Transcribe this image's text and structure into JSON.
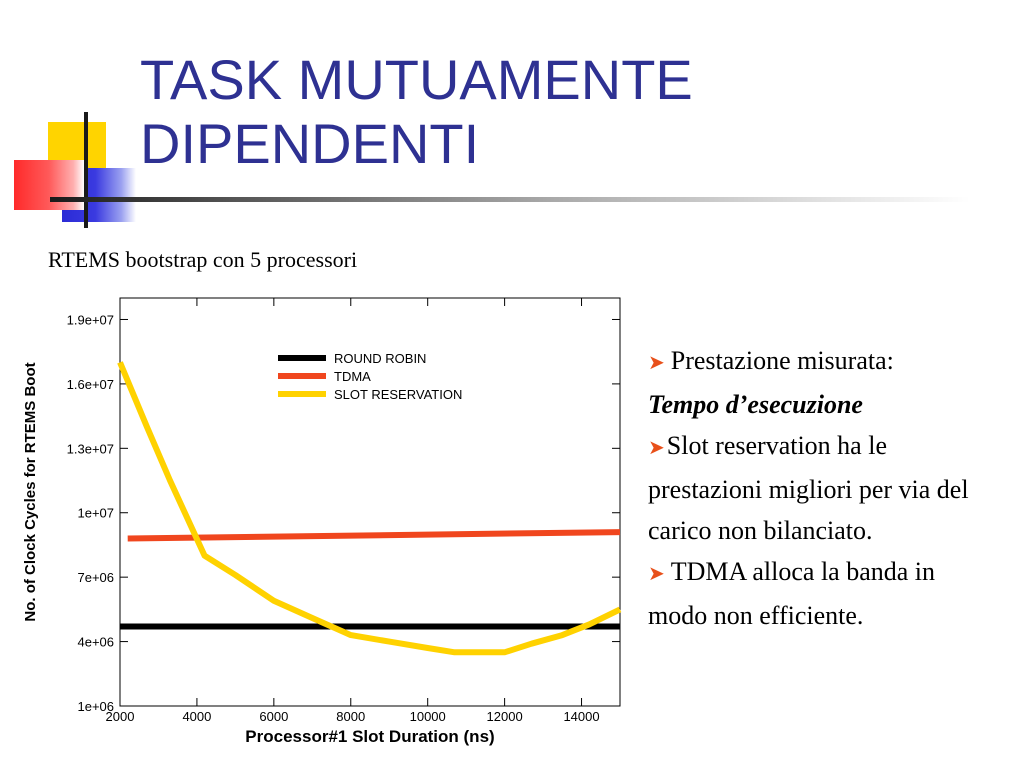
{
  "slide": {
    "title_lines": [
      "TASK MUTUAMENTE",
      "DIPENDENTI"
    ],
    "subtitle": "RTEMS bootstrap con 5 processori",
    "bullets": [
      {
        "text": "Prestazione misurata:",
        "emphasis": "Tempo d’esecuzione"
      },
      {
        "text": "Slot reservation ha le prestazioni migliori per via del carico non bilanciato."
      },
      {
        "text": "TDMA alloca la banda in modo non efficiente."
      }
    ],
    "colors": {
      "title": "#2e3192",
      "bullet_arrow": "#e8501a"
    }
  },
  "chart_data": {
    "type": "line",
    "xlabel": "Processor#1 Slot Duration (ns)",
    "ylabel": "No. of Clock Cycles for RTEMS Boot",
    "xlim": [
      2000,
      15000
    ],
    "ylim": [
      1000000,
      20000000
    ],
    "x_ticks": [
      2000,
      4000,
      6000,
      8000,
      10000,
      12000,
      14000
    ],
    "y_ticks": [
      1000000,
      4000000,
      7000000,
      10000000,
      13000000,
      16000000,
      19000000
    ],
    "y_tick_labels": [
      "1e+06",
      "4e+06",
      "7e+06",
      "1e+07",
      "1.3e+07",
      "1.6e+07",
      "1.9e+07"
    ],
    "legend_position": "top-center",
    "grid": false,
    "series": [
      {
        "name": "ROUND ROBIN",
        "color": "#000000",
        "x": [
          2000,
          15000
        ],
        "y": [
          4700000,
          4700000
        ]
      },
      {
        "name": "TDMA",
        "color": "#f0461e",
        "x": [
          2200,
          15000
        ],
        "y": [
          8800000,
          9100000
        ]
      },
      {
        "name": "SLOT RESERVATION",
        "color": "#ffd200",
        "x": [
          2000,
          2700,
          3300,
          4200,
          5000,
          6000,
          7000,
          8000,
          9000,
          10000,
          10700,
          11500,
          12000,
          12700,
          13500,
          14200,
          15000
        ],
        "y": [
          17000000,
          14000000,
          11500000,
          8000000,
          7100000,
          5900000,
          5100000,
          4300000,
          4000000,
          3700000,
          3500000,
          3500000,
          3500000,
          3900000,
          4300000,
          4800000,
          5500000
        ]
      }
    ]
  }
}
